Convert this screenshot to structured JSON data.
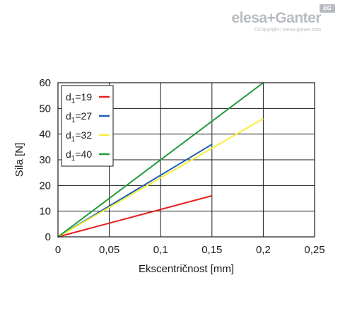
{
  "brand": {
    "logo_text": "elesa+Ganter",
    "badge_text": "EG",
    "copyright": "©Copyright | elesa-ganter.com"
  },
  "chart_data": {
    "type": "line",
    "xlabel": "Ekscentričnost [mm]",
    "ylabel": "Sila [N]",
    "xlim": [
      0,
      0.25
    ],
    "ylim": [
      0,
      60
    ],
    "x_ticks": [
      "0",
      "0,05",
      "0,1",
      "0,15",
      "0,2",
      "0,25"
    ],
    "y_ticks": [
      "0",
      "10",
      "20",
      "30",
      "40",
      "50",
      "60"
    ],
    "grid": true,
    "legend_position": "top-left",
    "series": [
      {
        "name": "d1=19",
        "label_main": "d",
        "label_sub": "1",
        "label_rest": "=19",
        "color": "#e8201d",
        "x": [
          0,
          0.15
        ],
        "y": [
          0,
          16
        ]
      },
      {
        "name": "d1=27",
        "label_main": "d",
        "label_sub": "1",
        "label_rest": "=27",
        "color": "#1f5fb5",
        "x": [
          0,
          0.15
        ],
        "y": [
          0,
          36
        ]
      },
      {
        "name": "d1=32",
        "label_main": "d",
        "label_sub": "1",
        "label_rest": "=32",
        "color": "#f5ef3a",
        "x": [
          0,
          0.2
        ],
        "y": [
          0,
          46
        ]
      },
      {
        "name": "d1=40",
        "label_main": "d",
        "label_sub": "1",
        "label_rest": "=40",
        "color": "#1f9c3a",
        "x": [
          0,
          0.2
        ],
        "y": [
          0,
          60
        ]
      }
    ]
  }
}
